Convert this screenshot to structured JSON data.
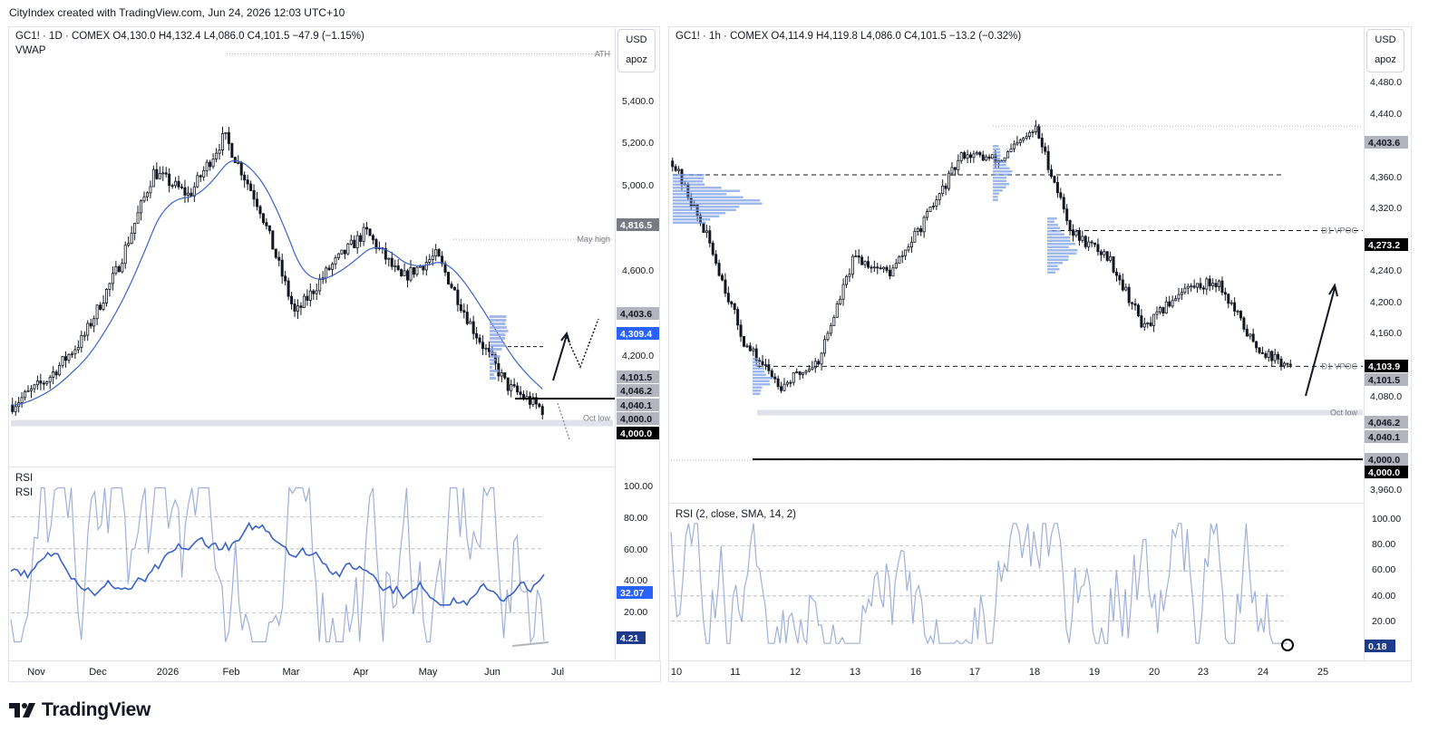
{
  "header": {
    "attribution": "CityIndex created with TradingView.com, Jun 24, 2026 12:03 UTC+10"
  },
  "left_chart": {
    "legend": "GC1! · 1D · COMEX  O4,130.0  H4,132.4  L4,086.0  C4,101.5  −47.9 (−1.15%)",
    "indicator": "VWAP",
    "currency": "USD",
    "scale_mode": "apoz",
    "price_labels": [
      "5,400.0",
      "5,200.0",
      "5,000.0",
      "4,600.0",
      "4,200.0"
    ],
    "tags": [
      {
        "text": "4,816.5",
        "bg": "#787b86",
        "fg": "#ffffff"
      },
      {
        "text": "4,403.6",
        "bg": "#b2b5be",
        "fg": "#131722"
      },
      {
        "text": "4,309.4",
        "bg": "#2962ff",
        "fg": "#ffffff"
      },
      {
        "text": "4,101.5",
        "bg": "#b2b5be",
        "fg": "#131722"
      },
      {
        "text": "4,046.2",
        "bg": "#b2b5be",
        "fg": "#131722"
      },
      {
        "text": "4,040.1",
        "bg": "#b2b5be",
        "fg": "#131722"
      },
      {
        "text": "4,000.0",
        "bg": "#b2b5be",
        "fg": "#131722"
      },
      {
        "text": "4,000.0",
        "bg": "#000000",
        "fg": "#ffffff"
      }
    ],
    "notes": {
      "ath": "ATH",
      "may_high": "May high",
      "oct_low": "Oct low"
    },
    "time_labels": [
      "Nov",
      "Dec",
      "2026",
      "Feb",
      "Mar",
      "Apr",
      "May",
      "Jun",
      "Jul"
    ],
    "rsi_legend": [
      "RSI",
      "RSI"
    ],
    "rsi_labels": [
      "100.00",
      "80.00",
      "60.00",
      "40.00",
      "20.00"
    ],
    "rsi_tags": [
      {
        "text": "32.07",
        "bg": "#2962ff",
        "fg": "#ffffff"
      },
      {
        "text": "4.21",
        "bg": "#1e3a8a",
        "fg": "#ffffff"
      }
    ]
  },
  "right_chart": {
    "legend": "GC1! · 1h · COMEX  O4,114.9  H4,119.8  L4,086.0  C4,101.5  −13.2 (−0.32%)",
    "currency": "USD",
    "scale_mode": "apoz",
    "price_labels": [
      "4,480.0",
      "4,440.0",
      "4,360.0",
      "4,320.0",
      "4,240.0",
      "4,200.0",
      "4,160.0",
      "4,080.0",
      "3,960.0"
    ],
    "tags": [
      {
        "text": "4,403.6",
        "bg": "#b2b5be",
        "fg": "#131722"
      },
      {
        "text": "4,273.2",
        "bg": "#000000",
        "fg": "#ffffff"
      },
      {
        "text": "4,103.9",
        "bg": "#000000",
        "fg": "#ffffff"
      },
      {
        "text": "4,101.5",
        "bg": "#b2b5be",
        "fg": "#131722"
      },
      {
        "text": "4,046.2",
        "bg": "#b2b5be",
        "fg": "#131722"
      },
      {
        "text": "4,040.1",
        "bg": "#b2b5be",
        "fg": "#131722"
      },
      {
        "text": "4,000.0",
        "bg": "#b2b5be",
        "fg": "#131722"
      },
      {
        "text": "4,000.0",
        "bg": "#000000",
        "fg": "#ffffff"
      }
    ],
    "notes": {
      "vpoc_upper": "D1 VPOC",
      "vpoc_lower": "D1 VPOC",
      "oct_low": "Oct low"
    },
    "time_labels": [
      "10",
      "11",
      "12",
      "13",
      "16",
      "17",
      "18",
      "19",
      "20",
      "23",
      "24",
      "25"
    ],
    "rsi_legend": "RSI (2, close, SMA, 14, 2)",
    "rsi_labels": [
      "100.00",
      "80.00",
      "60.00",
      "40.00",
      "20.00"
    ],
    "rsi_tags": [
      {
        "text": "0.18",
        "bg": "#1e3a8a",
        "fg": "#ffffff"
      }
    ]
  },
  "footer": {
    "brand": "TradingView"
  },
  "chart_data": [
    {
      "type": "candlestick",
      "title": "GC1! · 1D · COMEX",
      "ylim": [
        3900,
        5650
      ],
      "x": [
        "Nov",
        "Dec",
        "2026",
        "Feb",
        "Mar",
        "Apr",
        "May",
        "Jun",
        "Jul"
      ],
      "ohlc_summary": {
        "open": 4130.0,
        "high": 4132.4,
        "low": 4086.0,
        "close": 4101.5,
        "change": -47.9,
        "change_pct": -1.15
      },
      "close_path": [
        {
          "x": "Nov",
          "y": 4120
        },
        {
          "x": "Dec",
          "y": 4230
        },
        {
          "x": "2026",
          "y": 4400
        },
        {
          "x": "Jan",
          "y": 4700
        },
        {
          "x": "Feb",
          "y": 5100
        },
        {
          "x": "Feb-mid",
          "y": 5000
        },
        {
          "x": "Mar",
          "y": 5250
        },
        {
          "x": "Mar-mid",
          "y": 4950
        },
        {
          "x": "Mar-late",
          "y": 4500
        },
        {
          "x": "Apr",
          "y": 4700
        },
        {
          "x": "Apr-mid",
          "y": 4850
        },
        {
          "x": "May",
          "y": 4650
        },
        {
          "x": "May-mid",
          "y": 4750
        },
        {
          "x": "Jun",
          "y": 4450
        },
        {
          "x": "Jun-mid",
          "y": 4200
        },
        {
          "x": "Jun 24",
          "y": 4101.5
        }
      ],
      "levels": {
        "ATH": 5595,
        "May high": 4816.5,
        "4,403.6": 4403.6,
        "VWAP": 4309.4,
        "Oct low": 4046.2
      },
      "rsi": {
        "ylim": [
          0,
          100
        ],
        "levels": [
          80,
          60,
          40,
          20
        ],
        "last": [
          32.07,
          4.21
        ]
      }
    },
    {
      "type": "candlestick",
      "title": "GC1! · 1h · COMEX",
      "ylim": [
        3945,
        4510
      ],
      "x": [
        "10",
        "11",
        "12",
        "13",
        "16",
        "17",
        "18",
        "19",
        "20",
        "23",
        "24",
        "25"
      ],
      "ohlc_summary": {
        "open": 4114.9,
        "high": 4119.8,
        "low": 4086.0,
        "close": 4101.5,
        "change": -13.2,
        "change_pct": -0.32
      },
      "close_path": [
        {
          "x": "10",
          "y": 4360
        },
        {
          "x": "10-mid",
          "y": 4260
        },
        {
          "x": "11",
          "y": 4130
        },
        {
          "x": "11-mid",
          "y": 4080
        },
        {
          "x": "12",
          "y": 4110
        },
        {
          "x": "12-mid",
          "y": 4240
        },
        {
          "x": "13",
          "y": 4220
        },
        {
          "x": "13-late",
          "y": 4290
        },
        {
          "x": "16",
          "y": 4370
        },
        {
          "x": "17",
          "y": 4360
        },
        {
          "x": "18",
          "y": 4400
        },
        {
          "x": "18-mid",
          "y": 4270
        },
        {
          "x": "19",
          "y": 4240
        },
        {
          "x": "20",
          "y": 4150
        },
        {
          "x": "20-mid",
          "y": 4200
        },
        {
          "x": "23",
          "y": 4210
        },
        {
          "x": "23-mid",
          "y": 4130
        },
        {
          "x": "24",
          "y": 4101.5
        }
      ],
      "levels": {
        "4,403.6": 4403.6,
        "D1 VPOC upper": 4273.2,
        "D1 VPOC lower": 4103.9,
        "Oct low": 4046.2,
        "4,000.0": 4000.0
      },
      "rsi": {
        "ylim": [
          0,
          100
        ],
        "levels": [
          80,
          60,
          40,
          20
        ],
        "last": [
          0.18
        ]
      }
    }
  ]
}
